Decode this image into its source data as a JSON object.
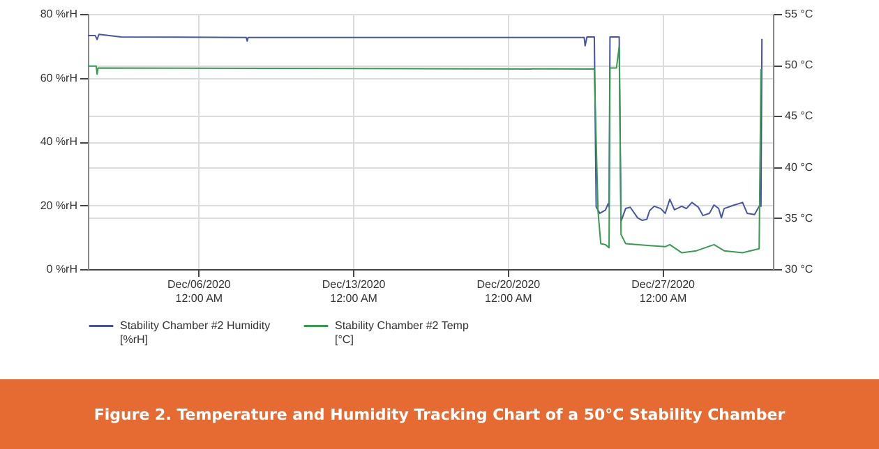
{
  "chart_data": {
    "type": "line",
    "title": "Figure 2. Temperature and Humidity Tracking Chart of a 50°C Stability Chamber",
    "xlim": [
      "2020-12-01T00:00",
      "2021-01-01T00:00"
    ],
    "xticks": [
      {
        "value": "2020-12-06T00:00",
        "label": "Dec/06/2020 12:00 AM"
      },
      {
        "value": "2020-12-13T00:00",
        "label": "Dec/13/2020 12:00 AM"
      },
      {
        "value": "2020-12-20T00:00",
        "label": "Dec/20/2020 12:00 AM"
      },
      {
        "value": "2020-12-27T00:00",
        "label": "Dec/27/2020 12:00 AM"
      }
    ],
    "ylim": [
      0,
      80
    ],
    "yticks": [
      {
        "value": 0,
        "label": "0 %rH"
      },
      {
        "value": 20,
        "label": "20 %rH"
      },
      {
        "value": 40,
        "label": "40 %rH"
      },
      {
        "value": 60,
        "label": "60 %rH"
      },
      {
        "value": 80,
        "label": "80 %rH"
      }
    ],
    "y2lim": [
      30,
      55
    ],
    "y2ticks": [
      {
        "value": 30,
        "label": "30 °C"
      },
      {
        "value": 35,
        "label": "35 °C"
      },
      {
        "value": 40,
        "label": "40 °C"
      },
      {
        "value": 45,
        "label": "45 °C"
      },
      {
        "value": 50,
        "label": "50 °C"
      },
      {
        "value": 55,
        "label": "55 °C"
      }
    ],
    "grid": true,
    "legend": "bottom left",
    "line_style": "solid",
    "marker": "none",
    "series": [
      {
        "name": "Stability Chamber #2 Humidity [%rH]",
        "color": "#4654a8",
        "x": [
          "2020-12-01T00:00",
          "2020-12-01T08:00",
          "2020-12-01T10:00",
          "2020-12-01T12:00",
          "2020-12-02T12:00",
          "2020-12-08T04:00",
          "2020-12-08T05:00",
          "2020-12-08T06:00",
          "2020-12-23T11:00",
          "2020-12-23T12:00",
          "2020-12-23T14:00",
          "2020-12-23T22:00",
          "2020-12-24T00:00",
          "2020-12-24T04:00",
          "2020-12-24T10:00",
          "2020-12-24T13:00",
          "2020-12-24T14:00",
          "2020-12-24T15:00",
          "2020-12-25T01:00",
          "2020-12-25T03:00",
          "2020-12-25T08:00",
          "2020-12-25T13:00",
          "2020-12-25T21:00",
          "2020-12-26T02:00",
          "2020-12-26T07:00",
          "2020-12-26T10:00",
          "2020-12-26T15:00",
          "2020-12-26T22:00",
          "2020-12-27T03:00",
          "2020-12-27T08:00",
          "2020-12-27T13:00",
          "2020-12-27T21:00",
          "2020-12-28T02:00",
          "2020-12-28T08:00",
          "2020-12-28T15:00",
          "2020-12-28T20:00",
          "2020-12-29T03:00",
          "2020-12-29T08:00",
          "2020-12-29T13:00",
          "2020-12-29T16:00",
          "2020-12-29T19:00",
          "2020-12-30T05:00",
          "2020-12-30T15:00",
          "2020-12-30T20:00",
          "2020-12-31T04:00",
          "2020-12-31T09:00",
          "2020-12-31T11:00",
          "2020-12-31T12:00"
        ],
        "values": [
          73.2,
          73.2,
          72,
          73.6,
          72.8,
          72.6,
          71.5,
          72.6,
          72.6,
          70,
          72.8,
          72.8,
          19.5,
          17.5,
          18.5,
          20.5,
          19.5,
          72.8,
          72.8,
          15,
          19,
          19.4,
          16.1,
          15.3,
          15.6,
          18.3,
          19.7,
          19,
          17.5,
          21.9,
          18.6,
          19.7,
          19,
          20.9,
          19.4,
          16.8,
          17.5,
          20.1,
          19,
          16.1,
          19,
          20,
          20.9,
          17.5,
          17.1,
          19.7,
          19.7,
          72.2
        ]
      },
      {
        "name": "Stability Chamber #2 Temp [°C]",
        "color": "#3a9a50",
        "axis": "y2",
        "x": [
          "2020-12-01T00:00",
          "2020-12-01T09:00",
          "2020-12-01T10:00",
          "2020-12-01T11:00",
          "2020-12-23T22:00",
          "2020-12-24T02:00",
          "2020-12-24T05:00",
          "2020-12-24T10:00",
          "2020-12-24T14:00",
          "2020-12-24T15:00",
          "2020-12-24T22:00",
          "2020-12-25T01:00",
          "2020-12-25T03:00",
          "2020-12-25T08:00",
          "2020-12-26T10:00",
          "2020-12-27T03:00",
          "2020-12-27T08:00",
          "2020-12-27T21:00",
          "2020-12-28T13:00",
          "2020-12-29T08:00",
          "2020-12-29T19:00",
          "2020-12-30T15:00",
          "2020-12-31T09:00",
          "2020-12-31T11:00"
        ],
        "values": [
          49.9,
          49.9,
          49.1,
          49.7,
          49.6,
          35.7,
          32.5,
          32.4,
          32.1,
          49.7,
          49.7,
          51.8,
          33.4,
          32.5,
          32.3,
          32.2,
          32.4,
          31.6,
          31.8,
          32.4,
          31.8,
          31.6,
          32,
          49.6
        ]
      }
    ]
  }
}
